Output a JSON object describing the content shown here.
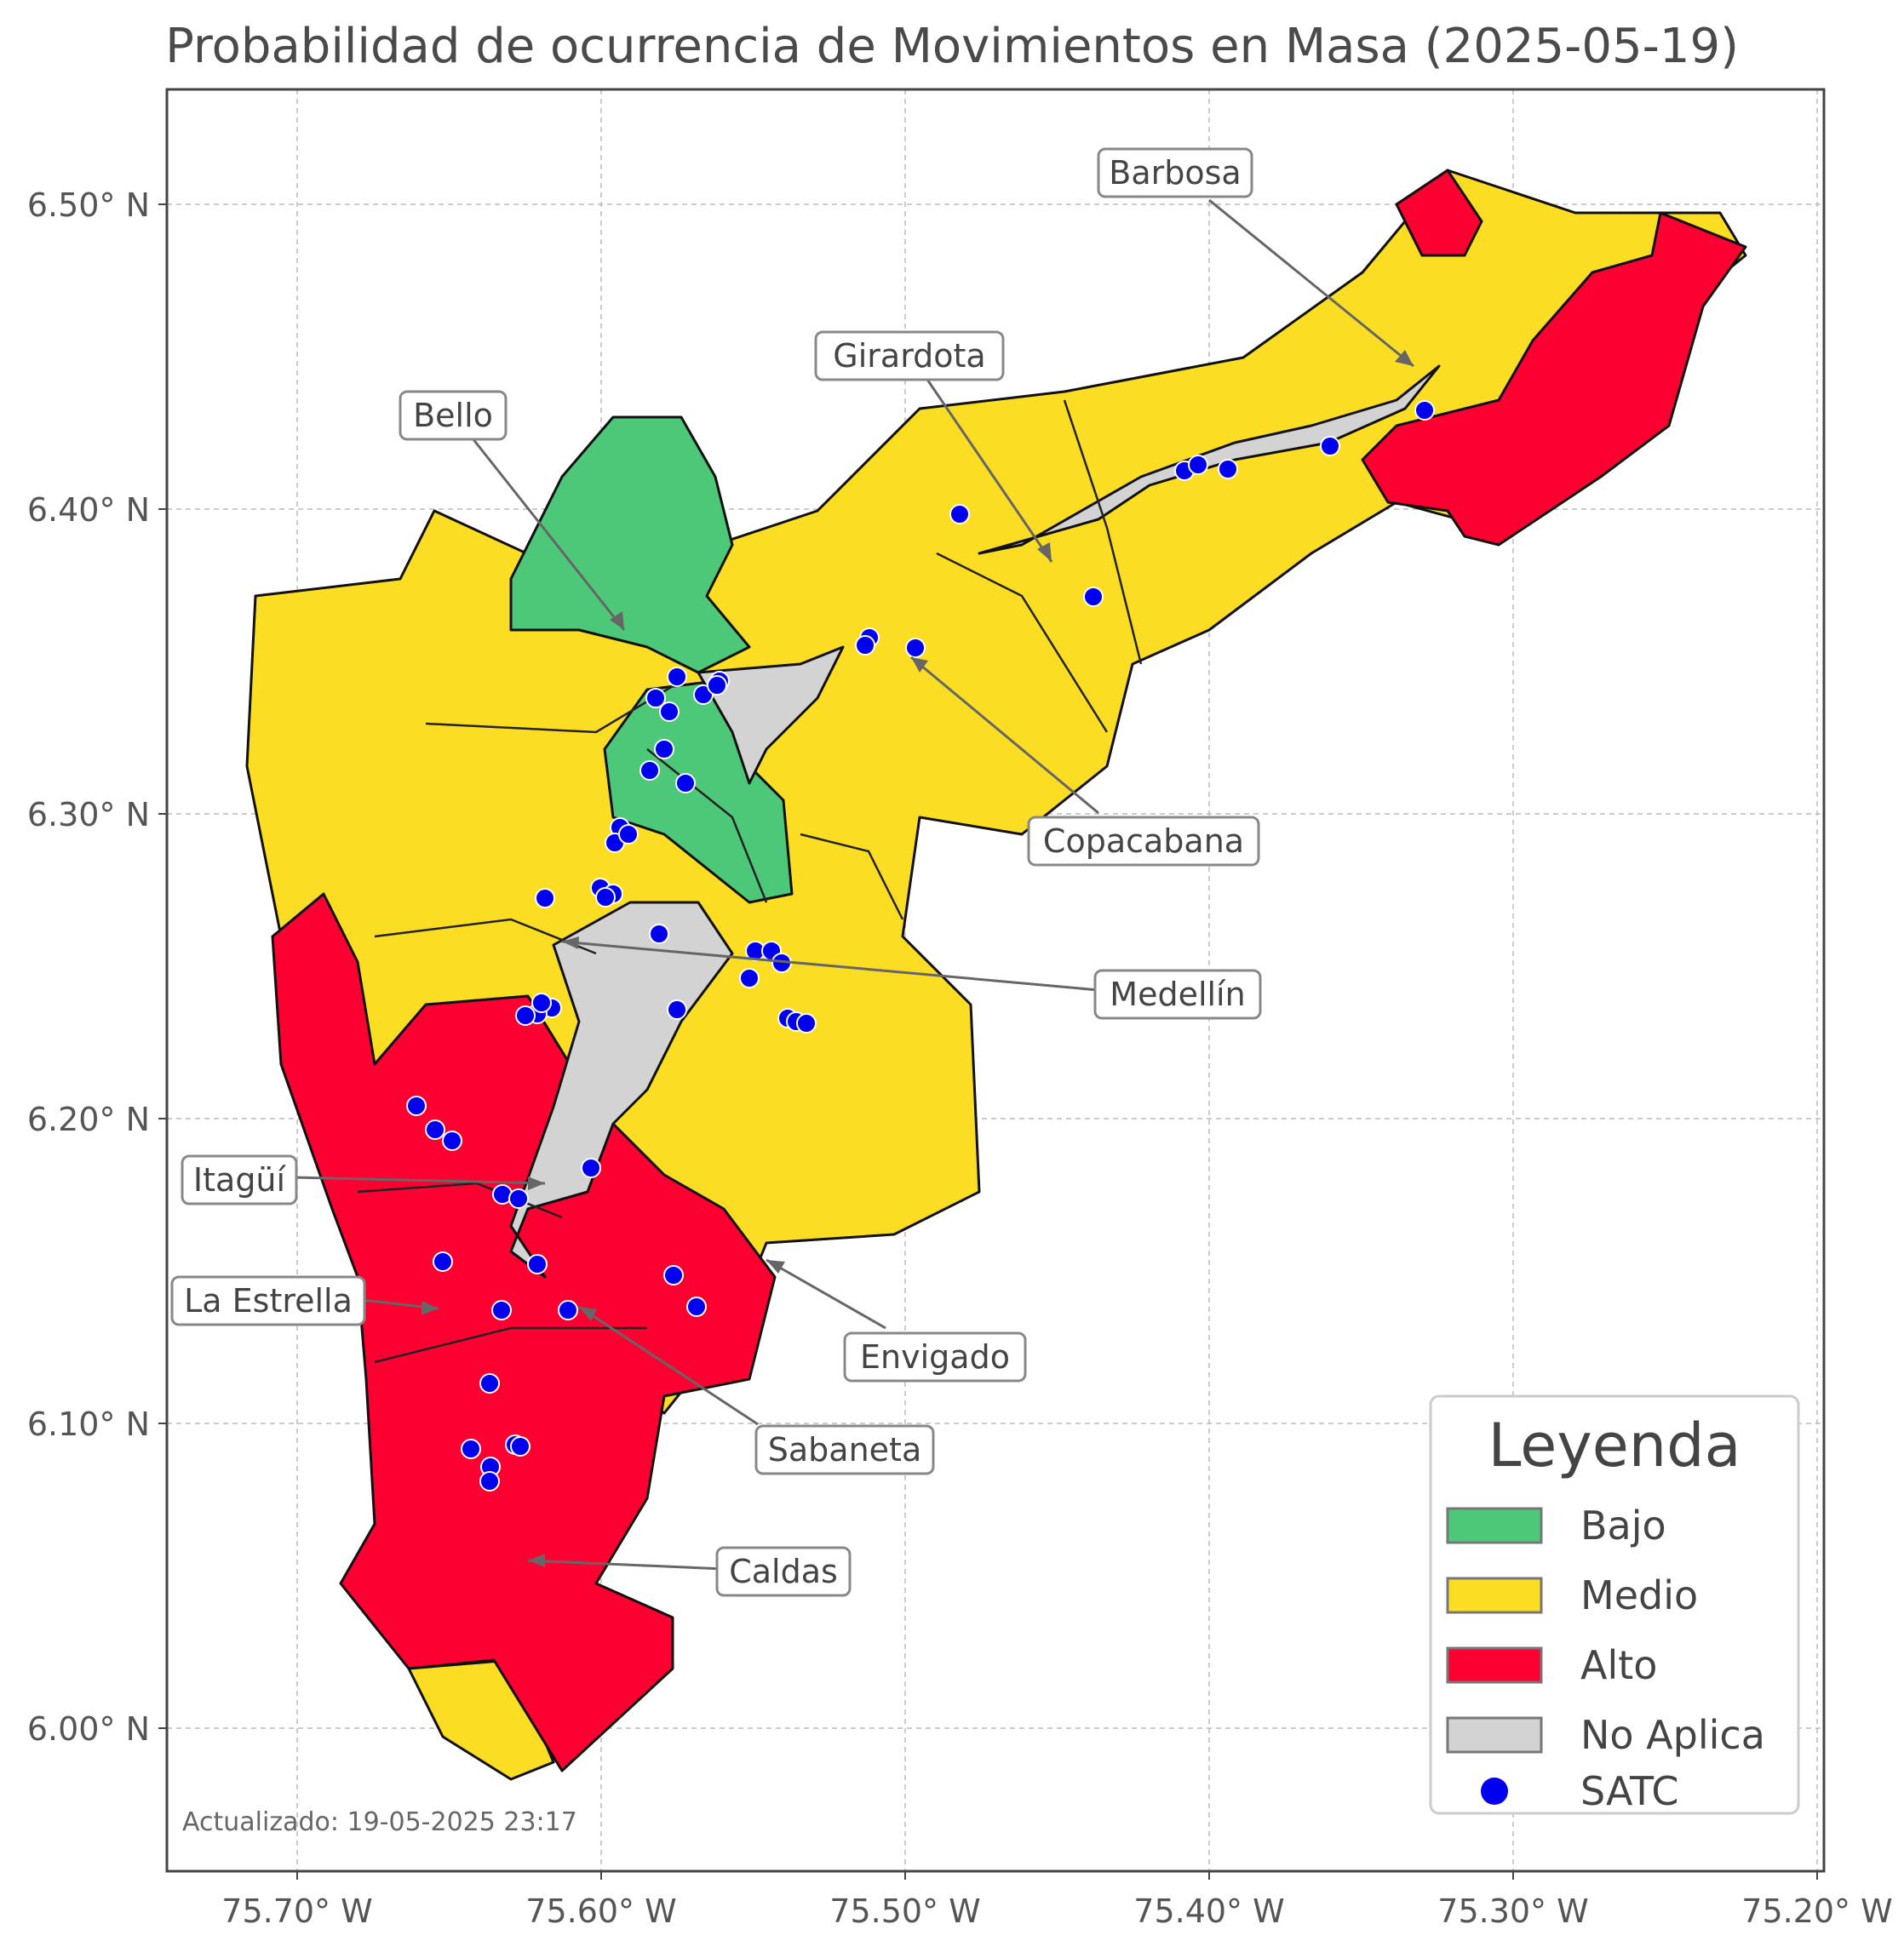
{
  "title": "Probabilidad de ocurrencia de Movimientos en Masa (2025-05-19)",
  "colors": {
    "bajo": "#4cc878",
    "medio": "#fbdd24",
    "alto": "#fb0030",
    "no_aplica": "#d3d3d3",
    "satc": "#0000ee"
  },
  "axes": {
    "x_ticks": [
      "75.70° W",
      "75.60° W",
      "75.50° W",
      "75.40° W",
      "75.30° W",
      "75.20° W"
    ],
    "y_ticks": [
      "6.50° N",
      "6.40° N",
      "6.30° N",
      "6.20° N",
      "6.10° N",
      "6.00° N"
    ]
  },
  "municipalities": {
    "barbosa": "Barbosa",
    "girardota": "Girardota",
    "bello": "Bello",
    "copacabana": "Copacabana",
    "medellin": "Medellín",
    "itagui": "Itagüí",
    "la_estrella": "La Estrella",
    "envigado": "Envigado",
    "sabaneta": "Sabaneta",
    "caldas": "Caldas"
  },
  "legend": {
    "title": "Leyenda",
    "items": [
      "Bajo",
      "Medio",
      "Alto",
      "No Aplica",
      "SATC"
    ]
  },
  "updated": "Actualizado: 19-05-2025 23:17"
}
